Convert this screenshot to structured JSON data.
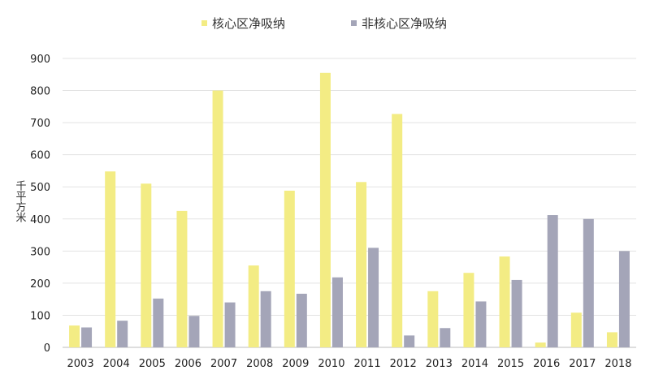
{
  "chart_data": {
    "type": "bar",
    "title": "",
    "xlabel": "",
    "ylabel": "千平方米",
    "ylim": [
      0,
      900
    ],
    "yticks": [
      0,
      100,
      200,
      300,
      400,
      500,
      600,
      700,
      800,
      900
    ],
    "grid": true,
    "legend_position": "top-center",
    "categories": [
      "2003",
      "2004",
      "2005",
      "2006",
      "2007",
      "2008",
      "2009",
      "2010",
      "2011",
      "2012",
      "2013",
      "2014",
      "2015",
      "2016",
      "2017",
      "2018"
    ],
    "series": [
      {
        "name": "核心区净吸纳",
        "color": "#f3ec84",
        "values": [
          68,
          548,
          510,
          425,
          800,
          255,
          488,
          855,
          515,
          727,
          175,
          232,
          283,
          15,
          108,
          47
        ]
      },
      {
        "name": "非核心区净吸纳",
        "color": "#a4a5b8",
        "values": [
          62,
          83,
          152,
          98,
          140,
          175,
          167,
          218,
          310,
          37,
          60,
          143,
          210,
          412,
          400,
          300
        ]
      }
    ]
  }
}
